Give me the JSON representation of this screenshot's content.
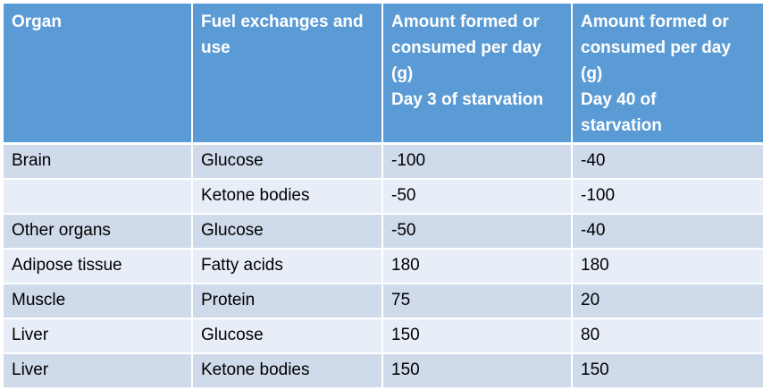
{
  "table": {
    "headers": [
      {
        "lines": [
          "Organ"
        ]
      },
      {
        "lines": [
          "Fuel exchanges and",
          "use"
        ]
      },
      {
        "lines": [
          "Amount formed or",
          "consumed per day",
          "(g)",
          "Day 3 of starvation"
        ]
      },
      {
        "lines": [
          "Amount formed or",
          "consumed per day",
          "(g)",
          "Day 40 of",
          "starvation"
        ]
      }
    ],
    "rows": [
      [
        "Brain",
        "Glucose",
        "-100",
        "-40"
      ],
      [
        "",
        "Ketone bodies",
        "-50",
        "-100"
      ],
      [
        "Other organs",
        "Glucose",
        "-50",
        "-40"
      ],
      [
        "Adipose tissue",
        "Fatty acids",
        "180",
        "180"
      ],
      [
        "Muscle",
        "Protein",
        "75",
        "20"
      ],
      [
        "Liver",
        "Glucose",
        "150",
        "80"
      ],
      [
        "Liver",
        "Ketone bodies",
        "150",
        "150"
      ]
    ]
  },
  "colors": {
    "header_bg": "#5b9bd5",
    "header_text": "#ffffff",
    "row_band_dark": "#cfdaeb",
    "row_band_light": "#e8eef7"
  }
}
